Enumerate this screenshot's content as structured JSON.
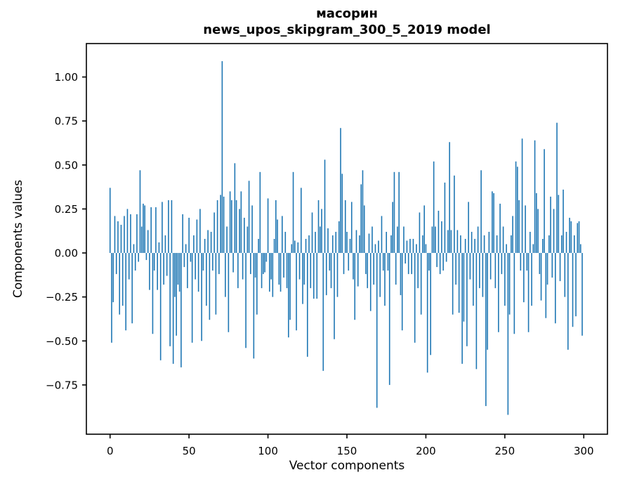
{
  "figure": {
    "title": "масорин",
    "subtitle": "news_upos_skipgram_300_5_2019 model",
    "xlabel": "Vector components",
    "ylabel": "Components values"
  },
  "chart_data": {
    "type": "bar",
    "title": "масорин",
    "subtitle": "news_upos_skipgram_300_5_2019 model",
    "xlabel": "Vector components",
    "ylabel": "Components values",
    "n_bars": 300,
    "x_type": "integer index 0-299",
    "bar_color": "#1f77b4",
    "grid": false,
    "legend": null,
    "xlim": [
      -15,
      315
    ],
    "ylim": [
      -1.03,
      1.19
    ],
    "x_ticks": [
      0,
      50,
      100,
      150,
      200,
      250,
      300
    ],
    "y_ticks": [
      -0.75,
      -0.5,
      -0.25,
      0,
      0.25,
      0.5,
      0.75,
      1
    ],
    "y_tick_labels": [
      "−0.75",
      "−0.50",
      "−0.25",
      "0.00",
      "0.25",
      "0.50",
      "0.75",
      "1.00"
    ],
    "values": [
      0.37,
      -0.51,
      -0.28,
      0.21,
      -0.12,
      0.18,
      -0.35,
      0.16,
      -0.3,
      0.21,
      -0.44,
      0.25,
      -0.15,
      0.22,
      -0.4,
      0.05,
      -0.1,
      0.22,
      -0.05,
      0.47,
      0.15,
      0.28,
      0.27,
      -0.04,
      0.13,
      -0.21,
      0.26,
      -0.46,
      -0.1,
      0.26,
      -0.21,
      0.06,
      -0.61,
      0.29,
      -0.18,
      0.1,
      -0.13,
      0.3,
      -0.53,
      0.3,
      -0.63,
      -0.25,
      -0.47,
      -0.18,
      -0.22,
      -0.65,
      0.22,
      -0.08,
      0.05,
      -0.2,
      0.2,
      -0.05,
      -0.51,
      0.1,
      -0.15,
      0.19,
      -0.22,
      0.25,
      -0.5,
      -0.1,
      0.08,
      -0.3,
      0.13,
      -0.38,
      0.12,
      -0.1,
      0.23,
      -0.35,
      0.3,
      -0.12,
      0.33,
      1.09,
      0.32,
      -0.25,
      0.15,
      -0.45,
      0.35,
      0.3,
      -0.11,
      0.51,
      0.3,
      -0.2,
      0.25,
      0.35,
      -0.15,
      0.2,
      -0.54,
      0.15,
      0.41,
      -0.12,
      0.27,
      -0.6,
      -0.14,
      -0.35,
      0.08,
      0.46,
      -0.2,
      -0.12,
      -0.11,
      -0.05,
      0.31,
      -0.22,
      -0.15,
      -0.25,
      0.08,
      0.3,
      0.19,
      -0.18,
      -0.22,
      0.21,
      -0.14,
      0.12,
      -0.2,
      -0.48,
      -0.38,
      0.05,
      0.46,
      0.07,
      -0.44,
      0.06,
      -0.15,
      0.37,
      -0.29,
      -0.18,
      0.08,
      -0.59,
      0.1,
      -0.2,
      0.23,
      -0.26,
      0.12,
      -0.26,
      0.3,
      0.15,
      0.25,
      -0.67,
      0.53,
      -0.24,
      0.14,
      -0.1,
      -0.2,
      0.1,
      -0.49,
      0.12,
      -0.25,
      0.18,
      0.71,
      0.45,
      -0.12,
      0.3,
      0.12,
      -0.1,
      0.08,
      0.29,
      -0.15,
      -0.38,
      0.13,
      -0.19,
      0.1,
      0.39,
      0.47,
      0.27,
      -0.12,
      -0.2,
      0.11,
      -0.33,
      0.15,
      -0.18,
      0.05,
      -0.88,
      0.07,
      -0.25,
      0.21,
      -0.1,
      -0.3,
      0.12,
      -0.1,
      -0.75,
      0.1,
      0.29,
      0.46,
      -0.18,
      0.15,
      0.46,
      -0.24,
      -0.44,
      0.15,
      -0.06,
      0.07,
      -0.12,
      0.08,
      -0.12,
      0.08,
      -0.51,
      0.05,
      -0.2,
      0.23,
      -0.35,
      0.1,
      0.27,
      0.05,
      -0.68,
      -0.1,
      -0.58,
      0.15,
      0.52,
      0.15,
      -0.08,
      0.24,
      -0.12,
      0.18,
      -0.1,
      0.4,
      -0.05,
      0.13,
      0.63,
      0.13,
      -0.35,
      0.44,
      -0.18,
      0.13,
      -0.34,
      0.1,
      -0.63,
      -0.39,
      0.08,
      -0.53,
      0.29,
      -0.15,
      0.12,
      -0.3,
      0.08,
      -0.66,
      0.15,
      -0.2,
      0.47,
      -0.25,
      0.1,
      -0.87,
      -0.55,
      0.12,
      -0.15,
      0.35,
      0.34,
      -0.2,
      0.1,
      -0.45,
      0.28,
      -0.12,
      0.15,
      -0.3,
      0.05,
      -0.92,
      -0.35,
      0.1,
      0.21,
      -0.46,
      0.52,
      0.49,
      0.3,
      -0.1,
      0.65,
      -0.28,
      0.27,
      -0.1,
      -0.45,
      0.12,
      -0.3,
      0.05,
      0.64,
      0.34,
      0.25,
      -0.12,
      -0.27,
      0.08,
      0.59,
      -0.37,
      -0.18,
      0.1,
      0.32,
      -0.14,
      0.25,
      -0.4,
      0.74,
      0.33,
      -0.16,
      0.1,
      0.36,
      -0.25,
      0.12,
      -0.55,
      0.2,
      0.18,
      -0.42,
      0.1,
      -0.36,
      0.17,
      0.18,
      0.05,
      -0.47
    ]
  }
}
